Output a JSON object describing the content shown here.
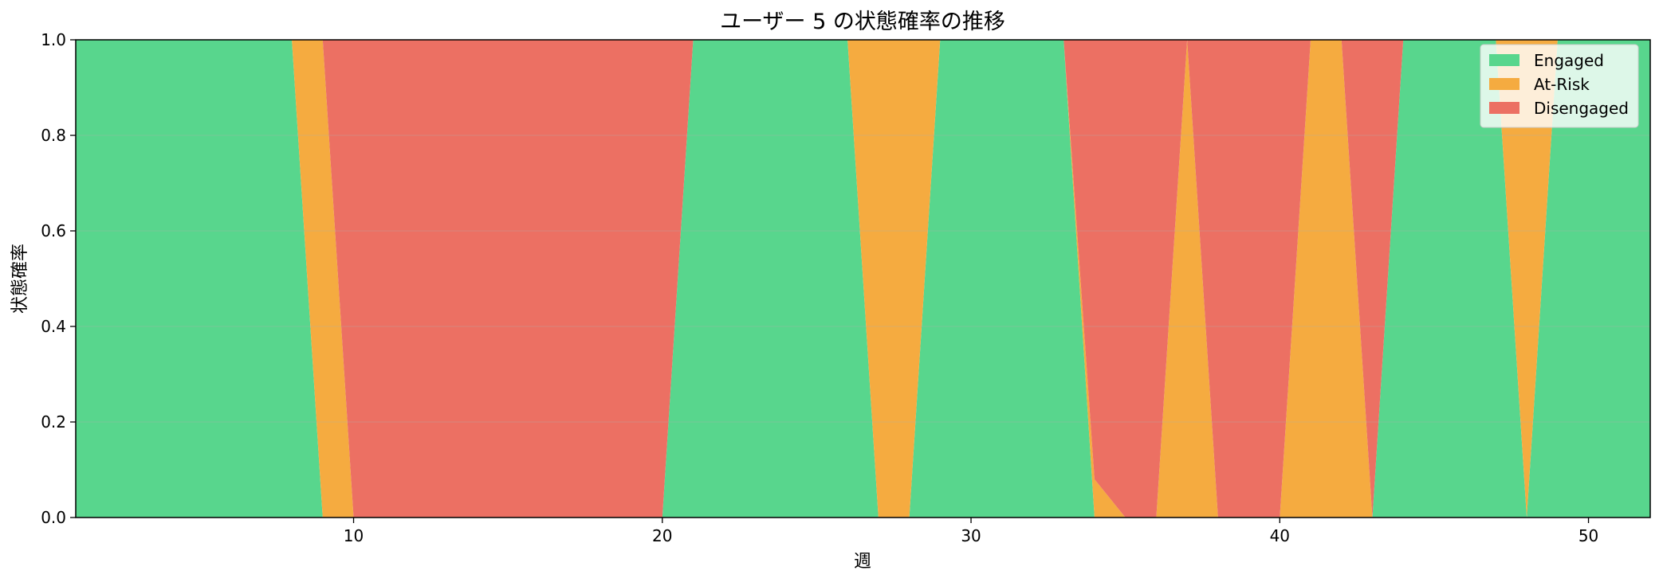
{
  "chart_data": {
    "type": "area",
    "stacked": true,
    "title": "ユーザー 5 の状態確率の推移",
    "xlabel": "週",
    "ylabel": "状態確率",
    "xlim": [
      1,
      52
    ],
    "ylim": [
      0,
      1
    ],
    "xticks": [
      10,
      20,
      30,
      40,
      50
    ],
    "yticks": [
      0.0,
      0.2,
      0.4,
      0.6,
      0.8,
      1.0
    ],
    "ytick_labels": [
      "0.0",
      "0.2",
      "0.4",
      "0.6",
      "0.8",
      "1.0"
    ],
    "grid": "horizontal",
    "legend_position": "top-right",
    "x": [
      1,
      2,
      3,
      4,
      5,
      6,
      7,
      8,
      9,
      10,
      11,
      12,
      13,
      14,
      15,
      16,
      17,
      18,
      19,
      20,
      21,
      22,
      23,
      24,
      25,
      26,
      27,
      28,
      29,
      30,
      31,
      32,
      33,
      34,
      35,
      36,
      37,
      38,
      39,
      40,
      41,
      42,
      43,
      44,
      45,
      46,
      47,
      48,
      49,
      50,
      51,
      52
    ],
    "series": [
      {
        "name": "Engaged",
        "color": "#58d68d",
        "values": [
          1,
          1,
          1,
          1,
          1,
          1,
          1,
          1,
          0,
          0,
          0,
          0,
          0,
          0,
          0,
          0,
          0,
          0,
          0,
          0,
          1,
          1,
          1,
          1,
          1,
          1,
          0,
          0,
          1,
          1,
          1,
          1,
          1,
          0,
          0,
          0,
          0,
          0,
          0,
          0,
          0,
          0,
          0,
          1,
          1,
          1,
          1,
          0,
          1,
          1,
          1,
          1
        ]
      },
      {
        "name": "At-Risk",
        "color": "#f5ab40",
        "values": [
          0,
          0,
          0,
          0,
          0,
          0,
          0,
          0,
          1,
          0,
          0,
          0,
          0,
          0,
          0,
          0,
          0,
          0,
          0,
          0,
          0,
          0,
          0,
          0,
          0,
          0,
          1,
          1,
          0,
          0,
          0,
          0,
          0,
          0.08,
          0,
          0,
          1,
          0,
          0,
          0,
          1,
          1,
          0,
          0,
          0,
          0,
          0,
          1,
          0,
          0,
          0,
          0
        ]
      },
      {
        "name": "Disengaged",
        "color": "#ec7063",
        "values": [
          0,
          0,
          0,
          0,
          0,
          0,
          0,
          0,
          0,
          1,
          1,
          1,
          1,
          1,
          1,
          1,
          1,
          1,
          1,
          1,
          0,
          0,
          0,
          0,
          0,
          0,
          0,
          0,
          0,
          0,
          0,
          0,
          0,
          0.92,
          1,
          1,
          0,
          1,
          1,
          1,
          0,
          0,
          1,
          0,
          0,
          0,
          0,
          0,
          0,
          0,
          0,
          0
        ]
      }
    ]
  }
}
